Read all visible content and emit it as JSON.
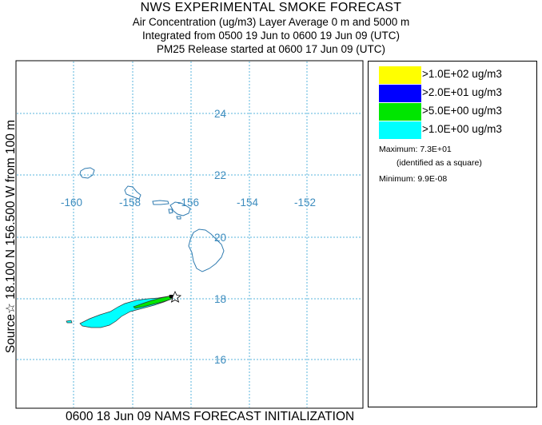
{
  "title": {
    "main": "NWS EXPERIMENTAL SMOKE FORECAST",
    "line1": "Air Concentration (ug/m3) Layer Average    0 m and  5000 m",
    "line2": "Integrated from 0500 19 Jun to 0600 19 Jun 09 (UTC)",
    "line3": "PM25 Release started at 0600 17 Jun 09 (UTC)"
  },
  "side_label": "Source☆ 18.100 N 156.500 W    from  100 m",
  "footer": "0600 18 Jun 09 NAMS FORECAST INITIALIZATION",
  "legend": {
    "items": [
      {
        "label": ">1.0E+02 ug/m3",
        "color": "#ffff00"
      },
      {
        "label": ">2.0E+01 ug/m3",
        "color": "#0000ff"
      },
      {
        "label": ">5.0E+00 ug/m3",
        "color": "#00e600"
      },
      {
        "label": ">1.0E+00 ug/m3",
        "color": "#00ffff"
      }
    ],
    "maximum": "Maximum: 7.3E+01",
    "maximum_note": "(identified as a square)",
    "minimum": "Minimum: 9.9E-08"
  },
  "map": {
    "grid_color": "#5ab4dc",
    "label_color": "#3c8cbe",
    "coast_color": "#2f7bb0",
    "lon_labels": [
      "-160",
      "-158",
      "-156",
      "-154",
      "-152"
    ],
    "lat_labels": [
      "24",
      "22",
      "20",
      "18",
      "16"
    ],
    "source_marker": "star-icon"
  }
}
